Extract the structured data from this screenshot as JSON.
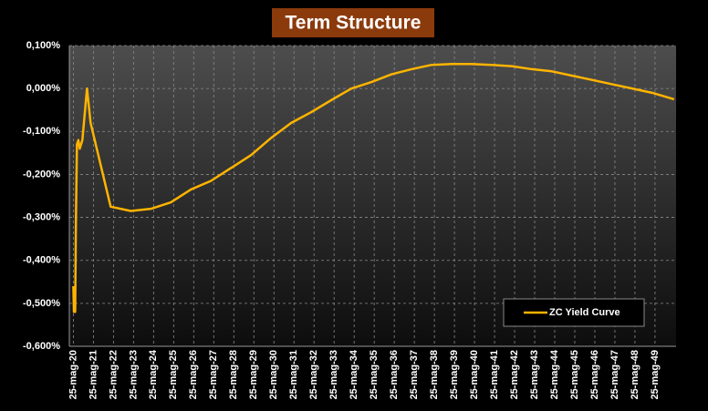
{
  "chart_data": {
    "type": "line",
    "title": "Term Structure",
    "xlim": [
      19.8,
      50.05
    ],
    "xticks": [
      {
        "value": 20,
        "label": "25-mag-20"
      },
      {
        "value": 21,
        "label": "25-mag-21"
      },
      {
        "value": 22,
        "label": "25-mag-22"
      },
      {
        "value": 23,
        "label": "25-mag-23"
      },
      {
        "value": 24,
        "label": "25-mag-24"
      },
      {
        "value": 25,
        "label": "25-mag-25"
      },
      {
        "value": 26,
        "label": "25-mag-26"
      },
      {
        "value": 27,
        "label": "25-mag-27"
      },
      {
        "value": 28,
        "label": "25-mag-28"
      },
      {
        "value": 29,
        "label": "25-mag-29"
      },
      {
        "value": 30,
        "label": "25-mag-30"
      },
      {
        "value": 31,
        "label": "25-mag-31"
      },
      {
        "value": 32,
        "label": "25-mag-32"
      },
      {
        "value": 33,
        "label": "25-mag-33"
      },
      {
        "value": 34,
        "label": "25-mag-34"
      },
      {
        "value": 35,
        "label": "25-mag-35"
      },
      {
        "value": 36,
        "label": "25-mag-36"
      },
      {
        "value": 37,
        "label": "25-mag-37"
      },
      {
        "value": 38,
        "label": "25-mag-38"
      },
      {
        "value": 39,
        "label": "25-mag-39"
      },
      {
        "value": 40,
        "label": "25-mag-40"
      },
      {
        "value": 41,
        "label": "25-mag-41"
      },
      {
        "value": 42,
        "label": "25-mag-42"
      },
      {
        "value": 43,
        "label": "25-mag-43"
      },
      {
        "value": 44,
        "label": "25-mag-44"
      },
      {
        "value": 45,
        "label": "25-mag-45"
      },
      {
        "value": 46,
        "label": "25-mag-46"
      },
      {
        "value": 47,
        "label": "25-mag-47"
      },
      {
        "value": 48,
        "label": "25-mag-48"
      },
      {
        "value": 49,
        "label": "25-mag-49"
      }
    ],
    "ylim": [
      -0.6,
      0.1
    ],
    "yticks": [
      {
        "value": -0.6,
        "label": "-0,600%"
      },
      {
        "value": -0.5,
        "label": "-0,500%"
      },
      {
        "value": -0.4,
        "label": "-0,400%"
      },
      {
        "value": -0.3,
        "label": "-0,300%"
      },
      {
        "value": -0.2,
        "label": "-0,200%"
      },
      {
        "value": -0.1,
        "label": "-0,100%"
      },
      {
        "value": 0,
        "label": "0,000%"
      },
      {
        "value": 0.1,
        "label": "0,100%"
      }
    ],
    "grid": true,
    "legend": "lower right",
    "x": [
      20.0,
      20.03,
      20.06,
      20.09,
      20.13,
      20.18,
      20.25,
      20.32,
      20.45,
      20.68,
      20.86,
      21.86,
      22.86,
      23.86,
      24.86,
      25.86,
      26.86,
      27.86,
      28.86,
      29.86,
      30.86,
      31.86,
      32.86,
      33.86,
      34.86,
      35.86,
      36.86,
      37.86,
      38.86,
      39.86,
      40.86,
      41.86,
      42.86,
      43.86,
      44.86,
      45.86,
      46.86,
      47.86,
      48.86,
      49.95
    ],
    "series": [
      {
        "name": "ZC Yield Curve",
        "color": "#ffb400",
        "values": [
          -0.46,
          -0.52,
          -0.48,
          -0.52,
          -0.3,
          -0.13,
          -0.12,
          -0.14,
          -0.12,
          0.0,
          -0.08,
          -0.275,
          -0.285,
          -0.28,
          -0.265,
          -0.235,
          -0.215,
          -0.185,
          -0.155,
          -0.115,
          -0.08,
          -0.055,
          -0.027,
          0.0,
          0.015,
          0.033,
          0.045,
          0.055,
          0.057,
          0.057,
          0.055,
          0.052,
          0.045,
          0.04,
          0.03,
          0.02,
          0.01,
          0.0,
          -0.01,
          -0.025
        ]
      }
    ]
  }
}
